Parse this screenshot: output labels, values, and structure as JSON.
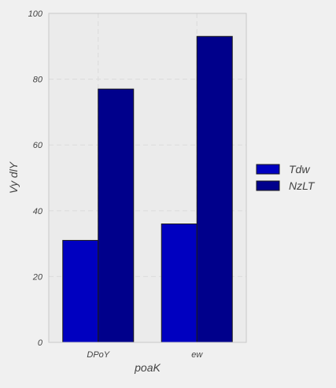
{
  "chart_data": {
    "type": "bar",
    "title": "",
    "xlabel": "poaK",
    "ylabel": "Vy dlY",
    "categories": [
      "DPoY",
      "ew"
    ],
    "series": [
      {
        "name": "Tdw",
        "values": [
          31,
          36
        ],
        "color": "#0000c0"
      },
      {
        "name": "NzLT",
        "values": [
          77,
          93
        ],
        "color": "#00008b"
      }
    ],
    "ylim": [
      0,
      100
    ],
    "yticks": [
      0,
      20,
      40,
      60,
      80,
      100
    ],
    "ytick_labels": [
      "0",
      "20",
      "40",
      "60",
      "80",
      "100"
    ],
    "grid": true,
    "legend_position": "right",
    "colors": {
      "background": "#f0f0f0",
      "plot_background": "#ebebeb",
      "grid": "#dddddd",
      "bar_edge": "#1a1a1a",
      "frame": "#c8c8c8"
    }
  }
}
